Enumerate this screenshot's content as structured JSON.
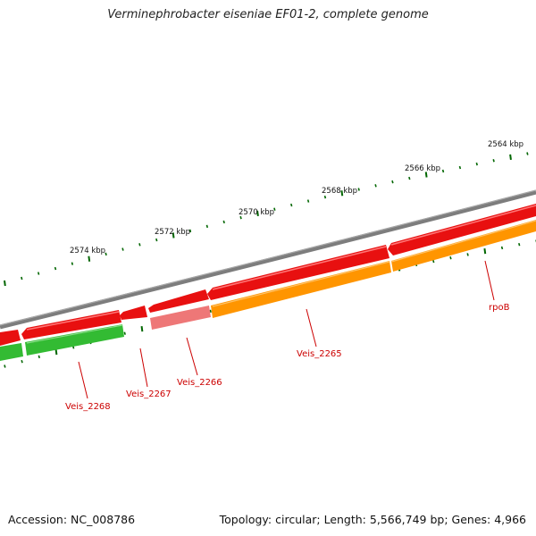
{
  "title": "Verminephrobacter eiseniae EF01-2, complete genome",
  "footer": {
    "accession": "Accession: NC_008786",
    "topology": "Topology: circular; Length: 5,566,749 bp; Genes: 4,966"
  },
  "colors": {
    "backbone": "#808080",
    "forward_gene": "#ee1111",
    "reverse_gene_green": "#33bb33",
    "reverse_gene_orange": "#ff9900",
    "reverse_gene_pink": "#ee7777",
    "tick": "#006600",
    "label": "#cc0000"
  },
  "kbp_labels": [
    "2564 kbp",
    "2566 kbp",
    "2568 kbp",
    "2570 kbp",
    "2572 kbp",
    "2574 kbp"
  ],
  "gene_labels": [
    "rpoB",
    "Veis_2265",
    "Veis_2266",
    "Veis_2267",
    "Veis_2268"
  ]
}
